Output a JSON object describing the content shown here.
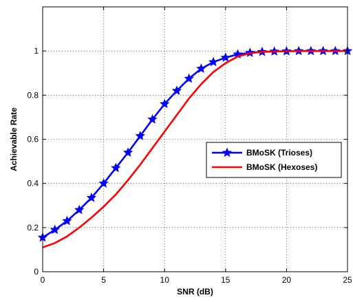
{
  "chart_data": {
    "type": "line",
    "xlabel": "SNR (dB)",
    "ylabel": "Achievable Rate",
    "xlim": [
      0,
      25
    ],
    "ylim": [
      0,
      1.2
    ],
    "xticks": [
      0,
      5,
      10,
      15,
      20,
      25
    ],
    "yticks": [
      0,
      0.2,
      0.4,
      0.6,
      0.8,
      1
    ],
    "xtick_labels": [
      "0",
      "5",
      "10",
      "15",
      "20",
      "25"
    ],
    "ytick_labels": [
      "0",
      "0.2",
      "0.4",
      "0.6",
      "0.8",
      "1"
    ],
    "grid": true,
    "legend_position": "right",
    "series": [
      {
        "name": "BMoSK (Trioses)",
        "color": "#0000ff",
        "marker": "star",
        "x": [
          0,
          1,
          2,
          3,
          4,
          5,
          6,
          7,
          8,
          9,
          10,
          11,
          12,
          13,
          14,
          15,
          16,
          17,
          18,
          19,
          20,
          21,
          22,
          23,
          24,
          25
        ],
        "y": [
          0.155,
          0.19,
          0.23,
          0.28,
          0.335,
          0.4,
          0.47,
          0.54,
          0.615,
          0.69,
          0.76,
          0.82,
          0.875,
          0.92,
          0.95,
          0.97,
          0.985,
          0.992,
          0.996,
          0.998,
          0.999,
          1.0,
          1.0,
          1.0,
          1.0,
          1.0
        ]
      },
      {
        "name": "BMoSK (Hexoses)",
        "color": "#ff0000",
        "marker": "none",
        "x": [
          0,
          1,
          2,
          3,
          4,
          5,
          6,
          7,
          8,
          9,
          10,
          11,
          12,
          13,
          14,
          15,
          16,
          17,
          18,
          19,
          20,
          21,
          22,
          23,
          24,
          25
        ],
        "y": [
          0.11,
          0.13,
          0.16,
          0.2,
          0.245,
          0.295,
          0.35,
          0.415,
          0.485,
          0.56,
          0.635,
          0.71,
          0.785,
          0.85,
          0.905,
          0.945,
          0.975,
          0.99,
          0.996,
          0.998,
          0.999,
          1.0,
          1.0,
          1.0,
          1.0,
          1.0
        ]
      }
    ]
  }
}
